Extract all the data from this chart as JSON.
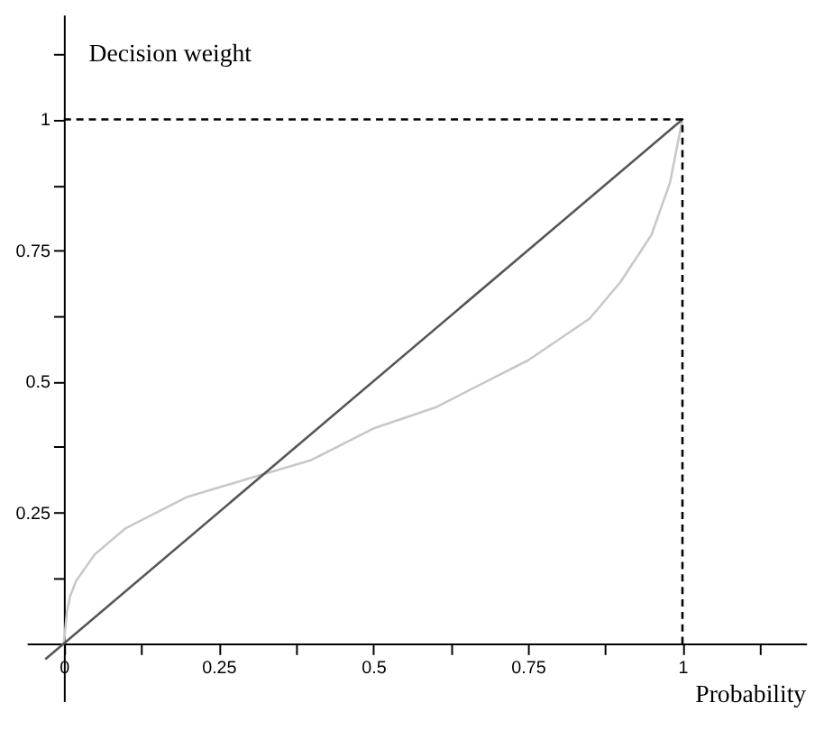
{
  "chart_data": {
    "type": "line",
    "xlabel": "Probability",
    "ylabel": "Decision weight",
    "xlim": [
      -0.06,
      1.2
    ],
    "ylim": [
      -0.11,
      1.2
    ],
    "xticks": [
      0,
      {
        "value": 0.125,
        "label": null
      },
      0.25,
      {
        "value": 0.375,
        "label": null
      },
      0.5,
      {
        "value": 0.625,
        "label": null
      },
      0.75,
      {
        "value": 0.875,
        "label": null
      },
      1,
      {
        "value": 1.125,
        "label": null
      }
    ],
    "yticks": [
      {
        "value": 0.125,
        "label": null
      },
      0.25,
      {
        "value": 0.375,
        "label": null
      },
      0.5,
      {
        "value": 0.625,
        "label": null
      },
      0.75,
      {
        "value": 0.875,
        "label": null
      },
      1,
      {
        "value": 1.125,
        "label": null
      }
    ],
    "series": [
      {
        "color": "#c8c8c8",
        "line_style": "solid",
        "x": [
          0,
          0.005,
          0.01,
          0.02,
          0.05,
          0.1,
          0.15,
          0.2,
          0.3,
          0.4,
          0.5,
          0.6,
          0.7,
          0.75,
          0.8,
          0.85,
          0.9,
          0.95,
          0.98,
          1.0
        ],
        "values": [
          0,
          0.06,
          0.09,
          0.12,
          0.17,
          0.22,
          0.25,
          0.28,
          0.315,
          0.35,
          0.41,
          0.45,
          0.51,
          0.54,
          0.58,
          0.62,
          0.69,
          0.78,
          0.88,
          1.0
        ]
      },
      {
        "color": "#555555",
        "line_style": "solid",
        "x": [
          -0.03,
          1
        ],
        "values": [
          -0.03,
          1
        ]
      },
      {
        "color": "#000000",
        "line_style": "dashed",
        "x": [
          0,
          1,
          1
        ],
        "values": [
          1,
          1,
          0
        ]
      }
    ]
  }
}
